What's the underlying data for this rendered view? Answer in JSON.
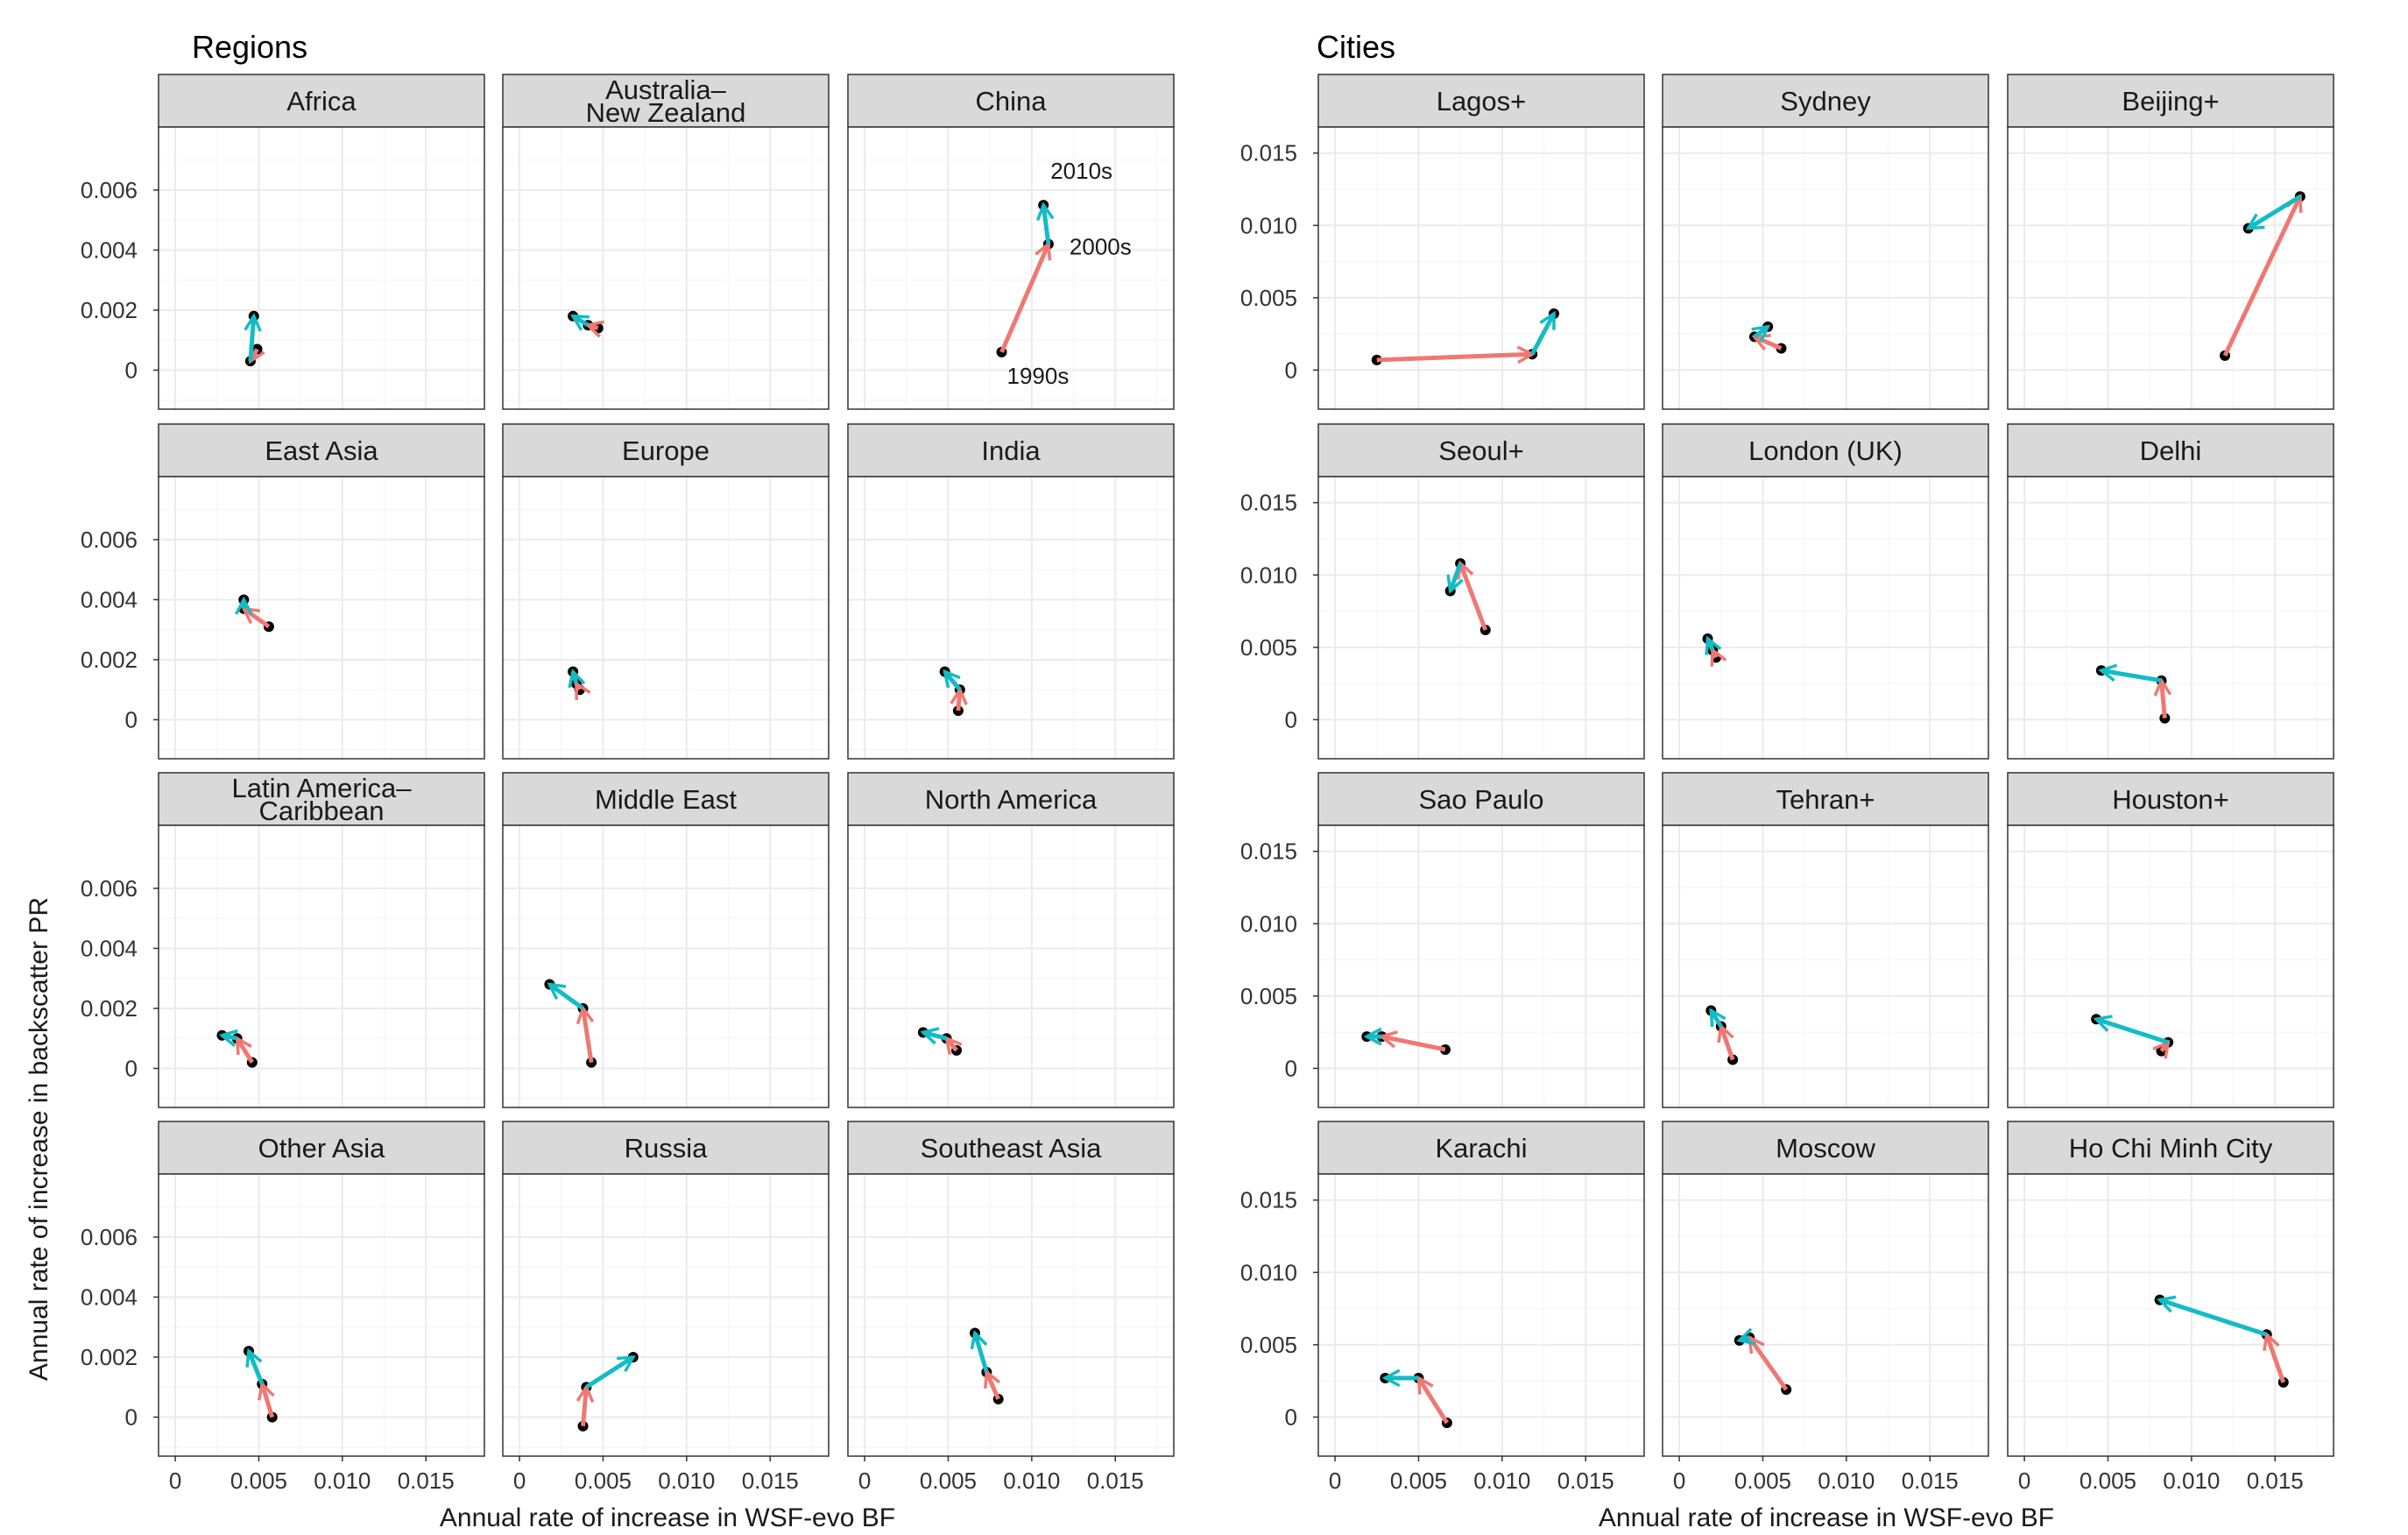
{
  "colors": {
    "period_1990s_2000s": "#F07872",
    "period_2000s_2010s": "#13BCC5",
    "point": "#000000",
    "panel_border": "#333333",
    "strip_fill": "#D9D9D9",
    "grid_major": "#EBEBEB",
    "grid_minor": "#F5F5F5"
  },
  "axes": {
    "xlabel": "Annual rate of increase in WSF-evo BF",
    "ylabel": "Annual rate of increase in backscatter PR"
  },
  "chart_data": [
    {
      "type": "scatter",
      "title": "Regions",
      "facet_grid": "4x3",
      "xlim": [
        -0.001,
        0.0185
      ],
      "ylim": [
        -0.0013,
        0.0081
      ],
      "xticks": [
        0,
        0.005,
        0.01,
        0.015
      ],
      "xtick_labels": [
        "0",
        "0.005",
        "0.010",
        "0.015"
      ],
      "yticks": [
        0,
        0.002,
        0.004,
        0.006
      ],
      "ytick_labels": [
        "0",
        "0.002",
        "0.004",
        "0.006"
      ],
      "grid": true,
      "annotations": [
        {
          "facet": "China",
          "text": "1990s",
          "x": 0.0082,
          "y": 0.0006
        },
        {
          "facet": "China",
          "text": "2000s",
          "x": 0.011,
          "y": 0.0042
        },
        {
          "facet": "China",
          "text": "2010s",
          "x": 0.0107,
          "y": 0.0055
        }
      ],
      "facets": [
        {
          "name": "Africa",
          "points": [
            [
              0.0049,
              0.0007
            ],
            [
              0.0045,
              0.0003
            ],
            [
              0.0047,
              0.0018
            ]
          ]
        },
        {
          "name": "Australia–New Zealand",
          "points": [
            [
              0.0047,
              0.0014
            ],
            [
              0.0041,
              0.0015
            ],
            [
              0.0032,
              0.0018
            ]
          ]
        },
        {
          "name": "China",
          "points": [
            [
              0.0082,
              0.0006
            ],
            [
              0.011,
              0.0042
            ],
            [
              0.0107,
              0.0055
            ]
          ]
        },
        {
          "name": "East Asia",
          "points": [
            [
              0.0056,
              0.0031
            ],
            [
              0.0041,
              0.0037
            ],
            [
              0.0041,
              0.004
            ]
          ]
        },
        {
          "name": "Europe",
          "points": [
            [
              0.0036,
              0.001
            ],
            [
              0.0034,
              0.0012
            ],
            [
              0.0032,
              0.0016
            ]
          ]
        },
        {
          "name": "India",
          "points": [
            [
              0.0056,
              0.0003
            ],
            [
              0.0057,
              0.001
            ],
            [
              0.0048,
              0.0016
            ]
          ]
        },
        {
          "name": "Latin America–Caribbean",
          "points": [
            [
              0.0046,
              0.0002
            ],
            [
              0.0037,
              0.001
            ],
            [
              0.0028,
              0.0011
            ]
          ]
        },
        {
          "name": "Middle East",
          "points": [
            [
              0.0043,
              0.0002
            ],
            [
              0.0038,
              0.002
            ],
            [
              0.0018,
              0.0028
            ]
          ]
        },
        {
          "name": "North America",
          "points": [
            [
              0.0055,
              0.0006
            ],
            [
              0.0049,
              0.001
            ],
            [
              0.0035,
              0.0012
            ]
          ]
        },
        {
          "name": "Other Asia",
          "points": [
            [
              0.0058,
              0.0
            ],
            [
              0.0052,
              0.0011
            ],
            [
              0.0044,
              0.0022
            ]
          ]
        },
        {
          "name": "Russia",
          "points": [
            [
              0.0038,
              -0.0003
            ],
            [
              0.004,
              0.001
            ],
            [
              0.0068,
              0.002
            ]
          ]
        },
        {
          "name": "Southeast Asia",
          "points": [
            [
              0.008,
              0.0006
            ],
            [
              0.0073,
              0.0015
            ],
            [
              0.0066,
              0.0028
            ]
          ]
        }
      ]
    },
    {
      "type": "scatter",
      "title": "Cities",
      "facet_grid": "4x3",
      "xlim": [
        -0.001,
        0.0185
      ],
      "ylim": [
        -0.0027,
        0.0168
      ],
      "xticks": [
        0,
        0.005,
        0.01,
        0.015
      ],
      "xtick_labels": [
        "0",
        "0.005",
        "0.010",
        "0.015"
      ],
      "yticks": [
        0,
        0.005,
        0.01,
        0.015
      ],
      "ytick_labels": [
        "0",
        "0.005",
        "0.010",
        "0.015"
      ],
      "grid": true,
      "facets": [
        {
          "name": "Lagos+",
          "points": [
            [
              0.0025,
              0.0007
            ],
            [
              0.0118,
              0.0011
            ],
            [
              0.0131,
              0.0039
            ]
          ]
        },
        {
          "name": "Sydney",
          "points": [
            [
              0.0061,
              0.0015
            ],
            [
              0.0045,
              0.0023
            ],
            [
              0.0053,
              0.003
            ]
          ]
        },
        {
          "name": "Beijing+",
          "points": [
            [
              0.012,
              0.001
            ],
            [
              0.0165,
              0.012
            ],
            [
              0.0134,
              0.0098
            ]
          ]
        },
        {
          "name": "Seoul+",
          "points": [
            [
              0.009,
              0.0062
            ],
            [
              0.0075,
              0.0108
            ],
            [
              0.0069,
              0.0089
            ]
          ]
        },
        {
          "name": "London (UK)",
          "points": [
            [
              0.0022,
              0.0043
            ],
            [
              0.002,
              0.0048
            ],
            [
              0.0017,
              0.0056
            ]
          ]
        },
        {
          "name": "Delhi",
          "points": [
            [
              0.0084,
              0.0001
            ],
            [
              0.0082,
              0.0027
            ],
            [
              0.0046,
              0.0034
            ]
          ]
        },
        {
          "name": "Sao Paulo",
          "points": [
            [
              0.0066,
              0.0013
            ],
            [
              0.0028,
              0.0022
            ],
            [
              0.0019,
              0.0022
            ]
          ]
        },
        {
          "name": "Tehran+",
          "points": [
            [
              0.0032,
              0.0006
            ],
            [
              0.0025,
              0.0029
            ],
            [
              0.0019,
              0.004
            ]
          ]
        },
        {
          "name": "Houston+",
          "points": [
            [
              0.0082,
              0.0012
            ],
            [
              0.0086,
              0.0018
            ],
            [
              0.0043,
              0.0034
            ]
          ]
        },
        {
          "name": "Karachi",
          "points": [
            [
              0.0067,
              -0.0004
            ],
            [
              0.005,
              0.0027
            ],
            [
              0.003,
              0.0027
            ]
          ]
        },
        {
          "name": "Moscow",
          "points": [
            [
              0.0064,
              0.0019
            ],
            [
              0.0042,
              0.0055
            ],
            [
              0.0036,
              0.0053
            ]
          ]
        },
        {
          "name": "Ho Chi Minh City",
          "points": [
            [
              0.0155,
              0.0024
            ],
            [
              0.0145,
              0.0057
            ],
            [
              0.0081,
              0.0081
            ]
          ]
        }
      ]
    }
  ]
}
